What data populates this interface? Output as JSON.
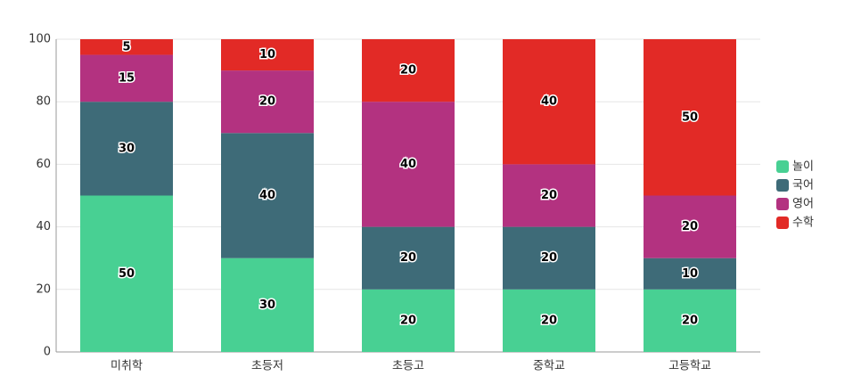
{
  "chart_data": {
    "type": "stacked_bar",
    "categories": [
      "미취학",
      "초등저",
      "초등고",
      "중학교",
      "고등학교"
    ],
    "series": [
      {
        "name": "놀이",
        "color": "#48d093",
        "values": [
          50,
          30,
          20,
          20,
          20
        ]
      },
      {
        "name": "국어",
        "color": "#3e6b78",
        "values": [
          30,
          40,
          20,
          20,
          10
        ]
      },
      {
        "name": "영어",
        "color": "#b33280",
        "values": [
          15,
          20,
          40,
          20,
          20
        ]
      },
      {
        "name": "수학",
        "color": "#e22a26",
        "values": [
          5,
          10,
          20,
          40,
          50
        ]
      }
    ],
    "ylim": [
      0,
      100
    ],
    "yticks": [
      0,
      20,
      40,
      60,
      80,
      100
    ],
    "grid": true,
    "legend": "right"
  }
}
